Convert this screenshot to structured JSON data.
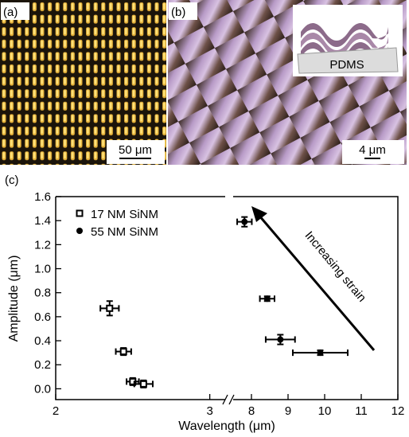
{
  "panels": [
    {
      "label": "(a)",
      "scale_label": "50 μm"
    },
    {
      "label": "(b)",
      "scale_label": "4 μm",
      "inset_label": "PDMS"
    }
  ],
  "chart_data": {
    "type": "scatter",
    "panel_label": "(c)",
    "x_label": "Wavelength (μm)",
    "y_label": "Amplitude (μm)",
    "xlim": [
      2,
      3.1
    ],
    "xticks": [
      2,
      3
    ],
    "x2lim": [
      7.5,
      12
    ],
    "x2ticks": [
      8,
      9,
      10,
      11,
      12
    ],
    "ylim": [
      -0.09,
      1.6
    ],
    "yticks": [
      {
        "value": 0,
        "label": "0.0"
      },
      0.2,
      0.4,
      0.6,
      0.8,
      {
        "value": 1,
        "label": "1.0"
      },
      1.2,
      1.4,
      1.6
    ],
    "legend": "upper left",
    "annotation": "Increasing strain",
    "series": [
      {
        "name": "17 NM SiNM",
        "marker": "square-open",
        "color": "#000000",
        "axis": "x",
        "x": [
          2.35,
          2.44,
          2.5,
          2.57
        ],
        "values": [
          0.67,
          0.31,
          0.06,
          0.04
        ],
        "x_err": [
          0.06,
          0.05,
          0.04,
          0.06
        ],
        "y_err": [
          0.06,
          0.03,
          0.03,
          0.03
        ]
      },
      {
        "name": "55 NM SiNM",
        "marker": "circle",
        "color": "#000000",
        "axis": "x2",
        "x": [
          7.81,
          8.43,
          8.79,
          9.88
        ],
        "values": [
          1.39,
          0.75,
          0.41,
          0.3
        ],
        "x_err": [
          0.2,
          0.2,
          0.4,
          0.75
        ],
        "y_err": [
          0.04,
          0.02,
          0.04,
          0.02
        ]
      }
    ]
  }
}
